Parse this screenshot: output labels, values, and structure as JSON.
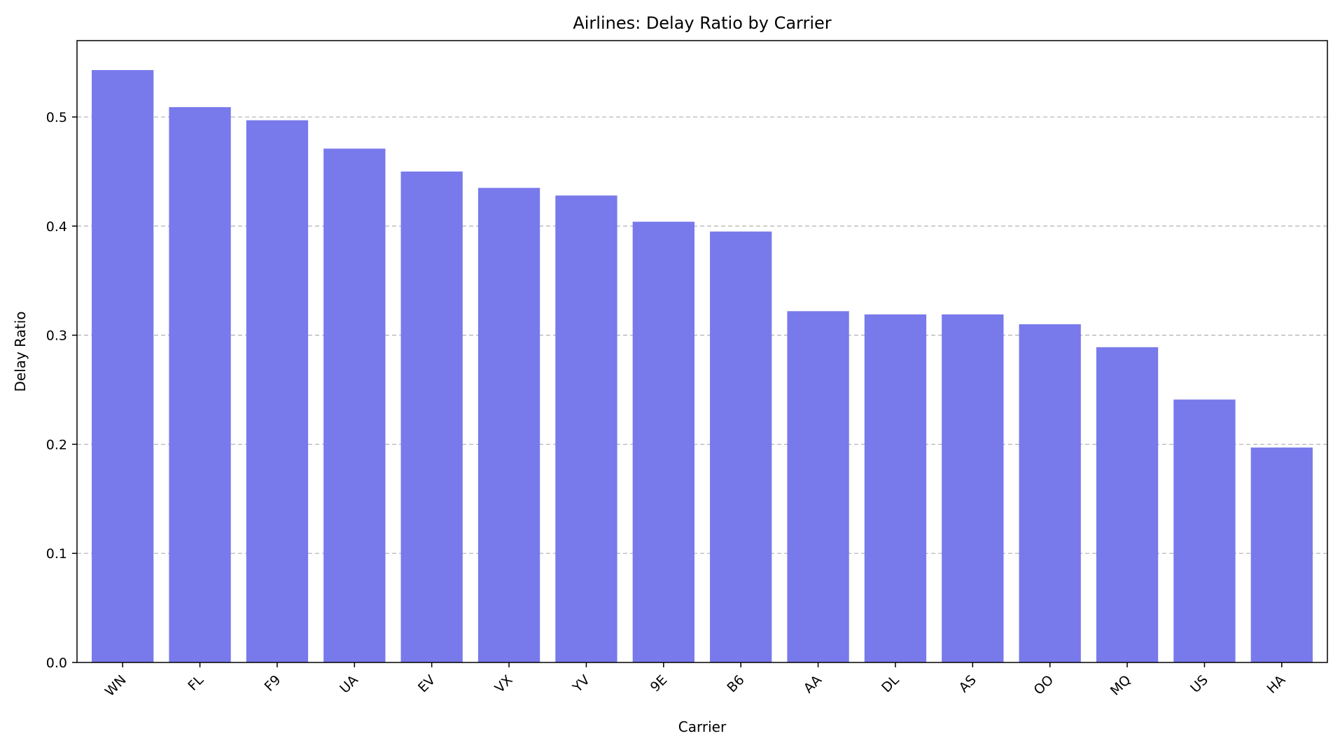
{
  "chart_data": {
    "type": "bar",
    "title": "Airlines: Delay Ratio by Carrier",
    "xlabel": "Carrier",
    "ylabel": "Delay Ratio",
    "categories": [
      "WN",
      "FL",
      "F9",
      "UA",
      "EV",
      "VX",
      "YV",
      "9E",
      "B6",
      "AA",
      "DL",
      "AS",
      "OO",
      "MQ",
      "US",
      "HA"
    ],
    "values": [
      0.543,
      0.509,
      0.497,
      0.471,
      0.45,
      0.435,
      0.428,
      0.404,
      0.395,
      0.322,
      0.319,
      0.319,
      0.31,
      0.289,
      0.241,
      0.197
    ],
    "ylim": [
      0,
      0.57
    ],
    "yticks": [
      0.0,
      0.1,
      0.2,
      0.3,
      0.4,
      0.5
    ],
    "ytick_labels": [
      "0.0",
      "0.1",
      "0.2",
      "0.3",
      "0.4",
      "0.5"
    ],
    "bar_color": "#7879eb",
    "grid": "horizontal dashed",
    "x_tick_rotation": "45deg"
  }
}
